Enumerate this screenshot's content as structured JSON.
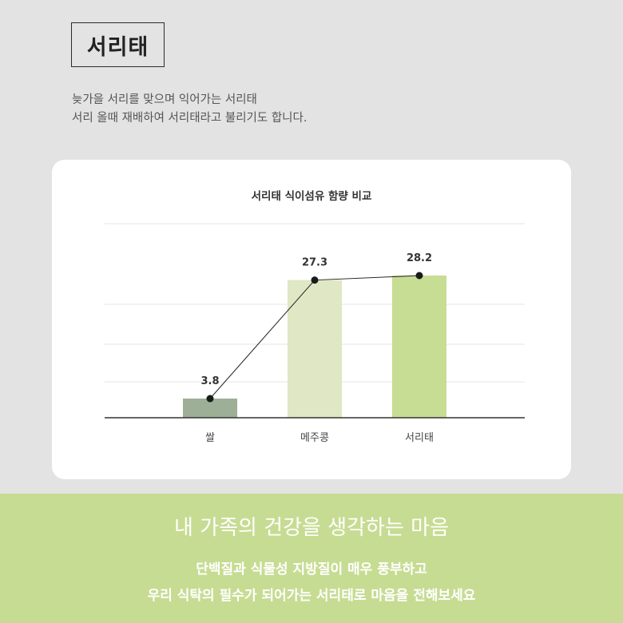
{
  "header": {
    "title": "서리태",
    "desc_line1": "늦가을 서리를 맞으며 익어가는 서리태",
    "desc_line2": "서리 올때 재배하여 서리태라고 불리기도 합니다."
  },
  "chart_data": {
    "type": "bar",
    "title": "서리태 식이섬유 함량 비교",
    "categories": [
      "쌀",
      "메주콩",
      "서리태"
    ],
    "values": [
      3.8,
      27.3,
      28.2
    ],
    "value_labels": [
      "3.8",
      "27.3",
      "28.2"
    ],
    "line_overlay": true,
    "bar_colors": [
      "#9daf97",
      "#dfe7c4",
      "#c6dd93"
    ],
    "grid": true,
    "legend": "none"
  },
  "banner": {
    "title": "내 가족의 건강을 생각하는 마음",
    "line1": "단백질과 식물성 지방질이 매우 풍부하고",
    "line2": "우리 식탁의 필수가 되어가는 서리태로 마음을 전해보세요"
  }
}
